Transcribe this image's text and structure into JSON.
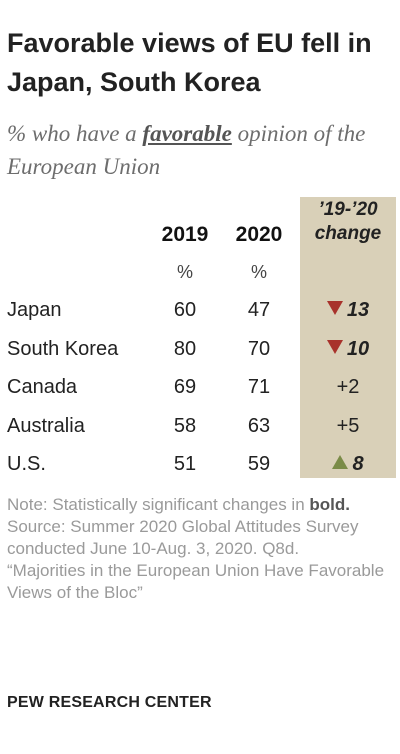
{
  "title": "Favorable views of EU fell in Japan, South Korea",
  "subtitle": {
    "before": "% who have a ",
    "emphasis": "favorable",
    "after": " opinion of the European Union"
  },
  "columns": {
    "y2019": "2019",
    "y2020": "2020",
    "change_line1": "’19-’20",
    "change_line2": "change",
    "pct_2019": "%",
    "pct_2020": "%"
  },
  "colors": {
    "change_column_bg": "#d9d0b8",
    "decrease_arrow": "#a8322b",
    "increase_arrow": "#7a8b47"
  },
  "chart_data": {
    "type": "table",
    "title": "Favorable views of EU fell in Japan, South Korea",
    "subtitle": "% who have a favorable opinion of the European Union",
    "columns": [
      "2019",
      "2020",
      "’19-’20 change"
    ],
    "rows": [
      {
        "country": "Japan",
        "v2019": 60,
        "v2020": 47,
        "change": "13",
        "direction": "down",
        "significant": true
      },
      {
        "country": "South Korea",
        "v2019": 80,
        "v2020": 70,
        "change": "10",
        "direction": "down",
        "significant": true
      },
      {
        "country": "Canada",
        "v2019": 69,
        "v2020": 71,
        "change": "+2",
        "direction": "none",
        "significant": false
      },
      {
        "country": "Australia",
        "v2019": 58,
        "v2020": 63,
        "change": "+5",
        "direction": "none",
        "significant": false
      },
      {
        "country": "U.S.",
        "v2019": 51,
        "v2020": 59,
        "change": "8",
        "direction": "up",
        "significant": true
      }
    ]
  },
  "notes": {
    "note_prefix": "Note: Statistically significant changes in ",
    "note_bold": "bold.",
    "source": "Source: Summer 2020 Global Attitudes Survey conducted June 10-Aug. 3, 2020. Q8d.",
    "report": "“Majorities in the European Union Have Favorable Views of the Bloc”"
  },
  "brand": "PEW RESEARCH CENTER"
}
